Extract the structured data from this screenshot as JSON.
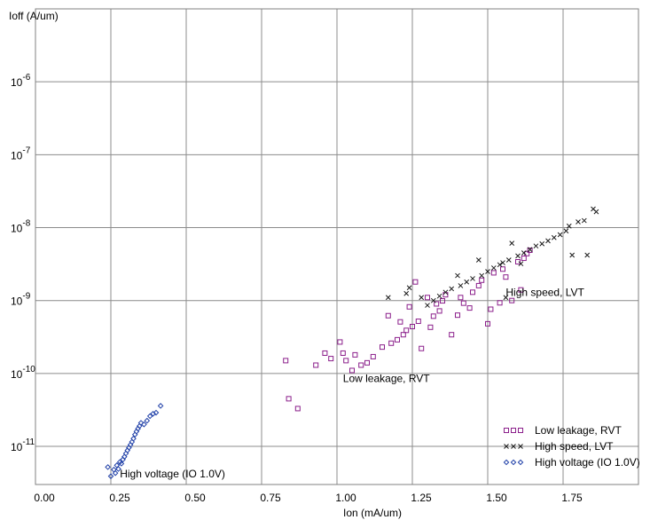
{
  "chart_data": {
    "type": "scatter",
    "title": "",
    "xlabel": "Ion (mA/um)",
    "ylabel": "Ioff (A/um)",
    "xlim": [
      0,
      2.0
    ],
    "ylim": [
      3e-12,
      1e-05
    ],
    "y_scale": "log",
    "grid": true,
    "legend_position": "bottom-right",
    "x_ticks": [
      {
        "value": 0,
        "label": "0.00"
      },
      {
        "value": 0.25,
        "label": "0.25"
      },
      {
        "value": 0.5,
        "label": "0.50"
      },
      {
        "value": 0.75,
        "label": "0.75"
      },
      {
        "value": 1.0,
        "label": "1.00"
      },
      {
        "value": 1.25,
        "label": "1.25"
      },
      {
        "value": 1.5,
        "label": "1.50"
      },
      {
        "value": 1.75,
        "label": "1.75"
      }
    ],
    "y_ticks": [
      {
        "value": 1e-06,
        "base": "10",
        "exp": "-6"
      },
      {
        "value": 1e-07,
        "base": "10",
        "exp": "-7"
      },
      {
        "value": 1e-08,
        "base": "10",
        "exp": "-8"
      },
      {
        "value": 1e-09,
        "base": "10",
        "exp": "-9"
      },
      {
        "value": 1e-10,
        "base": "10",
        "exp": "-10"
      },
      {
        "value": 1e-11,
        "base": "10",
        "exp": "-11"
      }
    ],
    "annotations": [
      {
        "text": "High speed, LVT",
        "x": 1.56,
        "y": 1.3e-09
      },
      {
        "text": "Low leakage, RVT",
        "x": 1.02,
        "y": 8.5e-11
      },
      {
        "text": "High voltage (IO 1.0V)",
        "x": 0.28,
        "y": 4.2e-12
      }
    ],
    "series": [
      {
        "name": "Low leakage, RVT",
        "marker": "square",
        "color": "#8b1f8b",
        "points": [
          [
            0.83,
            1.5e-10
          ],
          [
            0.84,
            4.5e-11
          ],
          [
            0.87,
            3.3e-11
          ],
          [
            0.93,
            1.3e-10
          ],
          [
            0.96,
            1.9e-10
          ],
          [
            0.98,
            1.6e-10
          ],
          [
            1.01,
            2.7e-10
          ],
          [
            1.02,
            1.9e-10
          ],
          [
            1.03,
            1.5e-10
          ],
          [
            1.05,
            1.1e-10
          ],
          [
            1.06,
            1.8e-10
          ],
          [
            1.08,
            1.3e-10
          ],
          [
            1.1,
            1.4e-10
          ],
          [
            1.12,
            1.7e-10
          ],
          [
            1.15,
            2.3e-10
          ],
          [
            1.17,
            6.2e-10
          ],
          [
            1.18,
            2.6e-10
          ],
          [
            1.2,
            2.9e-10
          ],
          [
            1.21,
            5.1e-10
          ],
          [
            1.22,
            3.4e-10
          ],
          [
            1.23,
            3.9e-10
          ],
          [
            1.24,
            8.2e-10
          ],
          [
            1.25,
            4.4e-10
          ],
          [
            1.26,
            1.8e-09
          ],
          [
            1.27,
            5.2e-10
          ],
          [
            1.28,
            2.2e-10
          ],
          [
            1.3,
            1.1e-09
          ],
          [
            1.31,
            4.3e-10
          ],
          [
            1.32,
            6.1e-10
          ],
          [
            1.33,
            9e-10
          ],
          [
            1.34,
            7.2e-10
          ],
          [
            1.35,
            9.9e-10
          ],
          [
            1.36,
            1.2e-09
          ],
          [
            1.38,
            3.4e-10
          ],
          [
            1.4,
            6.3e-10
          ],
          [
            1.41,
            1.1e-09
          ],
          [
            1.42,
            9.2e-10
          ],
          [
            1.44,
            7.9e-10
          ],
          [
            1.45,
            1.3e-09
          ],
          [
            1.47,
            1.6e-09
          ],
          [
            1.48,
            1.9e-09
          ],
          [
            1.5,
            4.8e-10
          ],
          [
            1.51,
            7.6e-10
          ],
          [
            1.52,
            2.4e-09
          ],
          [
            1.54,
            9.3e-10
          ],
          [
            1.55,
            2.7e-09
          ],
          [
            1.56,
            2.1e-09
          ],
          [
            1.58,
            1e-09
          ],
          [
            1.6,
            3.4e-09
          ],
          [
            1.61,
            1.4e-09
          ],
          [
            1.62,
            3.8e-09
          ],
          [
            1.63,
            4.4e-09
          ],
          [
            1.64,
            4.9e-09
          ]
        ]
      },
      {
        "name": "High speed, LVT",
        "marker": "x",
        "color": "#1a1a1a",
        "points": [
          [
            1.17,
            1.1e-09
          ],
          [
            1.23,
            1.25e-09
          ],
          [
            1.24,
            1.5e-09
          ],
          [
            1.28,
            1.1e-09
          ],
          [
            1.3,
            8.6e-10
          ],
          [
            1.32,
            1e-09
          ],
          [
            1.34,
            1.15e-09
          ],
          [
            1.36,
            1.3e-09
          ],
          [
            1.38,
            1.45e-09
          ],
          [
            1.4,
            2.2e-09
          ],
          [
            1.41,
            1.6e-09
          ],
          [
            1.43,
            1.8e-09
          ],
          [
            1.45,
            2e-09
          ],
          [
            1.47,
            3.6e-09
          ],
          [
            1.48,
            2.2e-09
          ],
          [
            1.5,
            2.5e-09
          ],
          [
            1.52,
            2.8e-09
          ],
          [
            1.54,
            3.1e-09
          ],
          [
            1.55,
            3.3e-09
          ],
          [
            1.56,
            1.1e-09
          ],
          [
            1.57,
            3.6e-09
          ],
          [
            1.58,
            6.1e-09
          ],
          [
            1.6,
            4.1e-09
          ],
          [
            1.61,
            3.2e-09
          ],
          [
            1.62,
            4.5e-09
          ],
          [
            1.64,
            5e-09
          ],
          [
            1.66,
            5.6e-09
          ],
          [
            1.68,
            6e-09
          ],
          [
            1.7,
            6.6e-09
          ],
          [
            1.72,
            7.3e-09
          ],
          [
            1.74,
            8e-09
          ],
          [
            1.76,
            9e-09
          ],
          [
            1.77,
            1.05e-08
          ],
          [
            1.78,
            4.2e-09
          ],
          [
            1.8,
            1.2e-08
          ],
          [
            1.82,
            1.25e-08
          ],
          [
            1.83,
            4.2e-09
          ],
          [
            1.85,
            1.8e-08
          ],
          [
            1.86,
            1.65e-08
          ]
        ]
      },
      {
        "name": "High voltage (IO 1.0V)",
        "marker": "diamond",
        "color": "#2040a8",
        "points": [
          [
            0.24,
            5.2e-12
          ],
          [
            0.25,
            3.9e-12
          ],
          [
            0.26,
            4.8e-12
          ],
          [
            0.265,
            4.3e-12
          ],
          [
            0.27,
            5.5e-12
          ],
          [
            0.275,
            4.9e-12
          ],
          [
            0.28,
            6.1e-12
          ],
          [
            0.285,
            5.8e-12
          ],
          [
            0.29,
            6.6e-12
          ],
          [
            0.295,
            7.2e-12
          ],
          [
            0.3,
            8e-12
          ],
          [
            0.305,
            8.8e-12
          ],
          [
            0.31,
            9.6e-12
          ],
          [
            0.315,
            1.05e-11
          ],
          [
            0.32,
            1.15e-11
          ],
          [
            0.325,
            1.28e-11
          ],
          [
            0.33,
            1.45e-11
          ],
          [
            0.335,
            1.6e-11
          ],
          [
            0.34,
            1.75e-11
          ],
          [
            0.345,
            1.9e-11
          ],
          [
            0.35,
            2.1e-11
          ],
          [
            0.36,
            2e-11
          ],
          [
            0.37,
            2.25e-11
          ],
          [
            0.38,
            2.6e-11
          ],
          [
            0.39,
            2.8e-11
          ],
          [
            0.4,
            2.9e-11
          ],
          [
            0.415,
            3.6e-11
          ]
        ]
      }
    ]
  }
}
